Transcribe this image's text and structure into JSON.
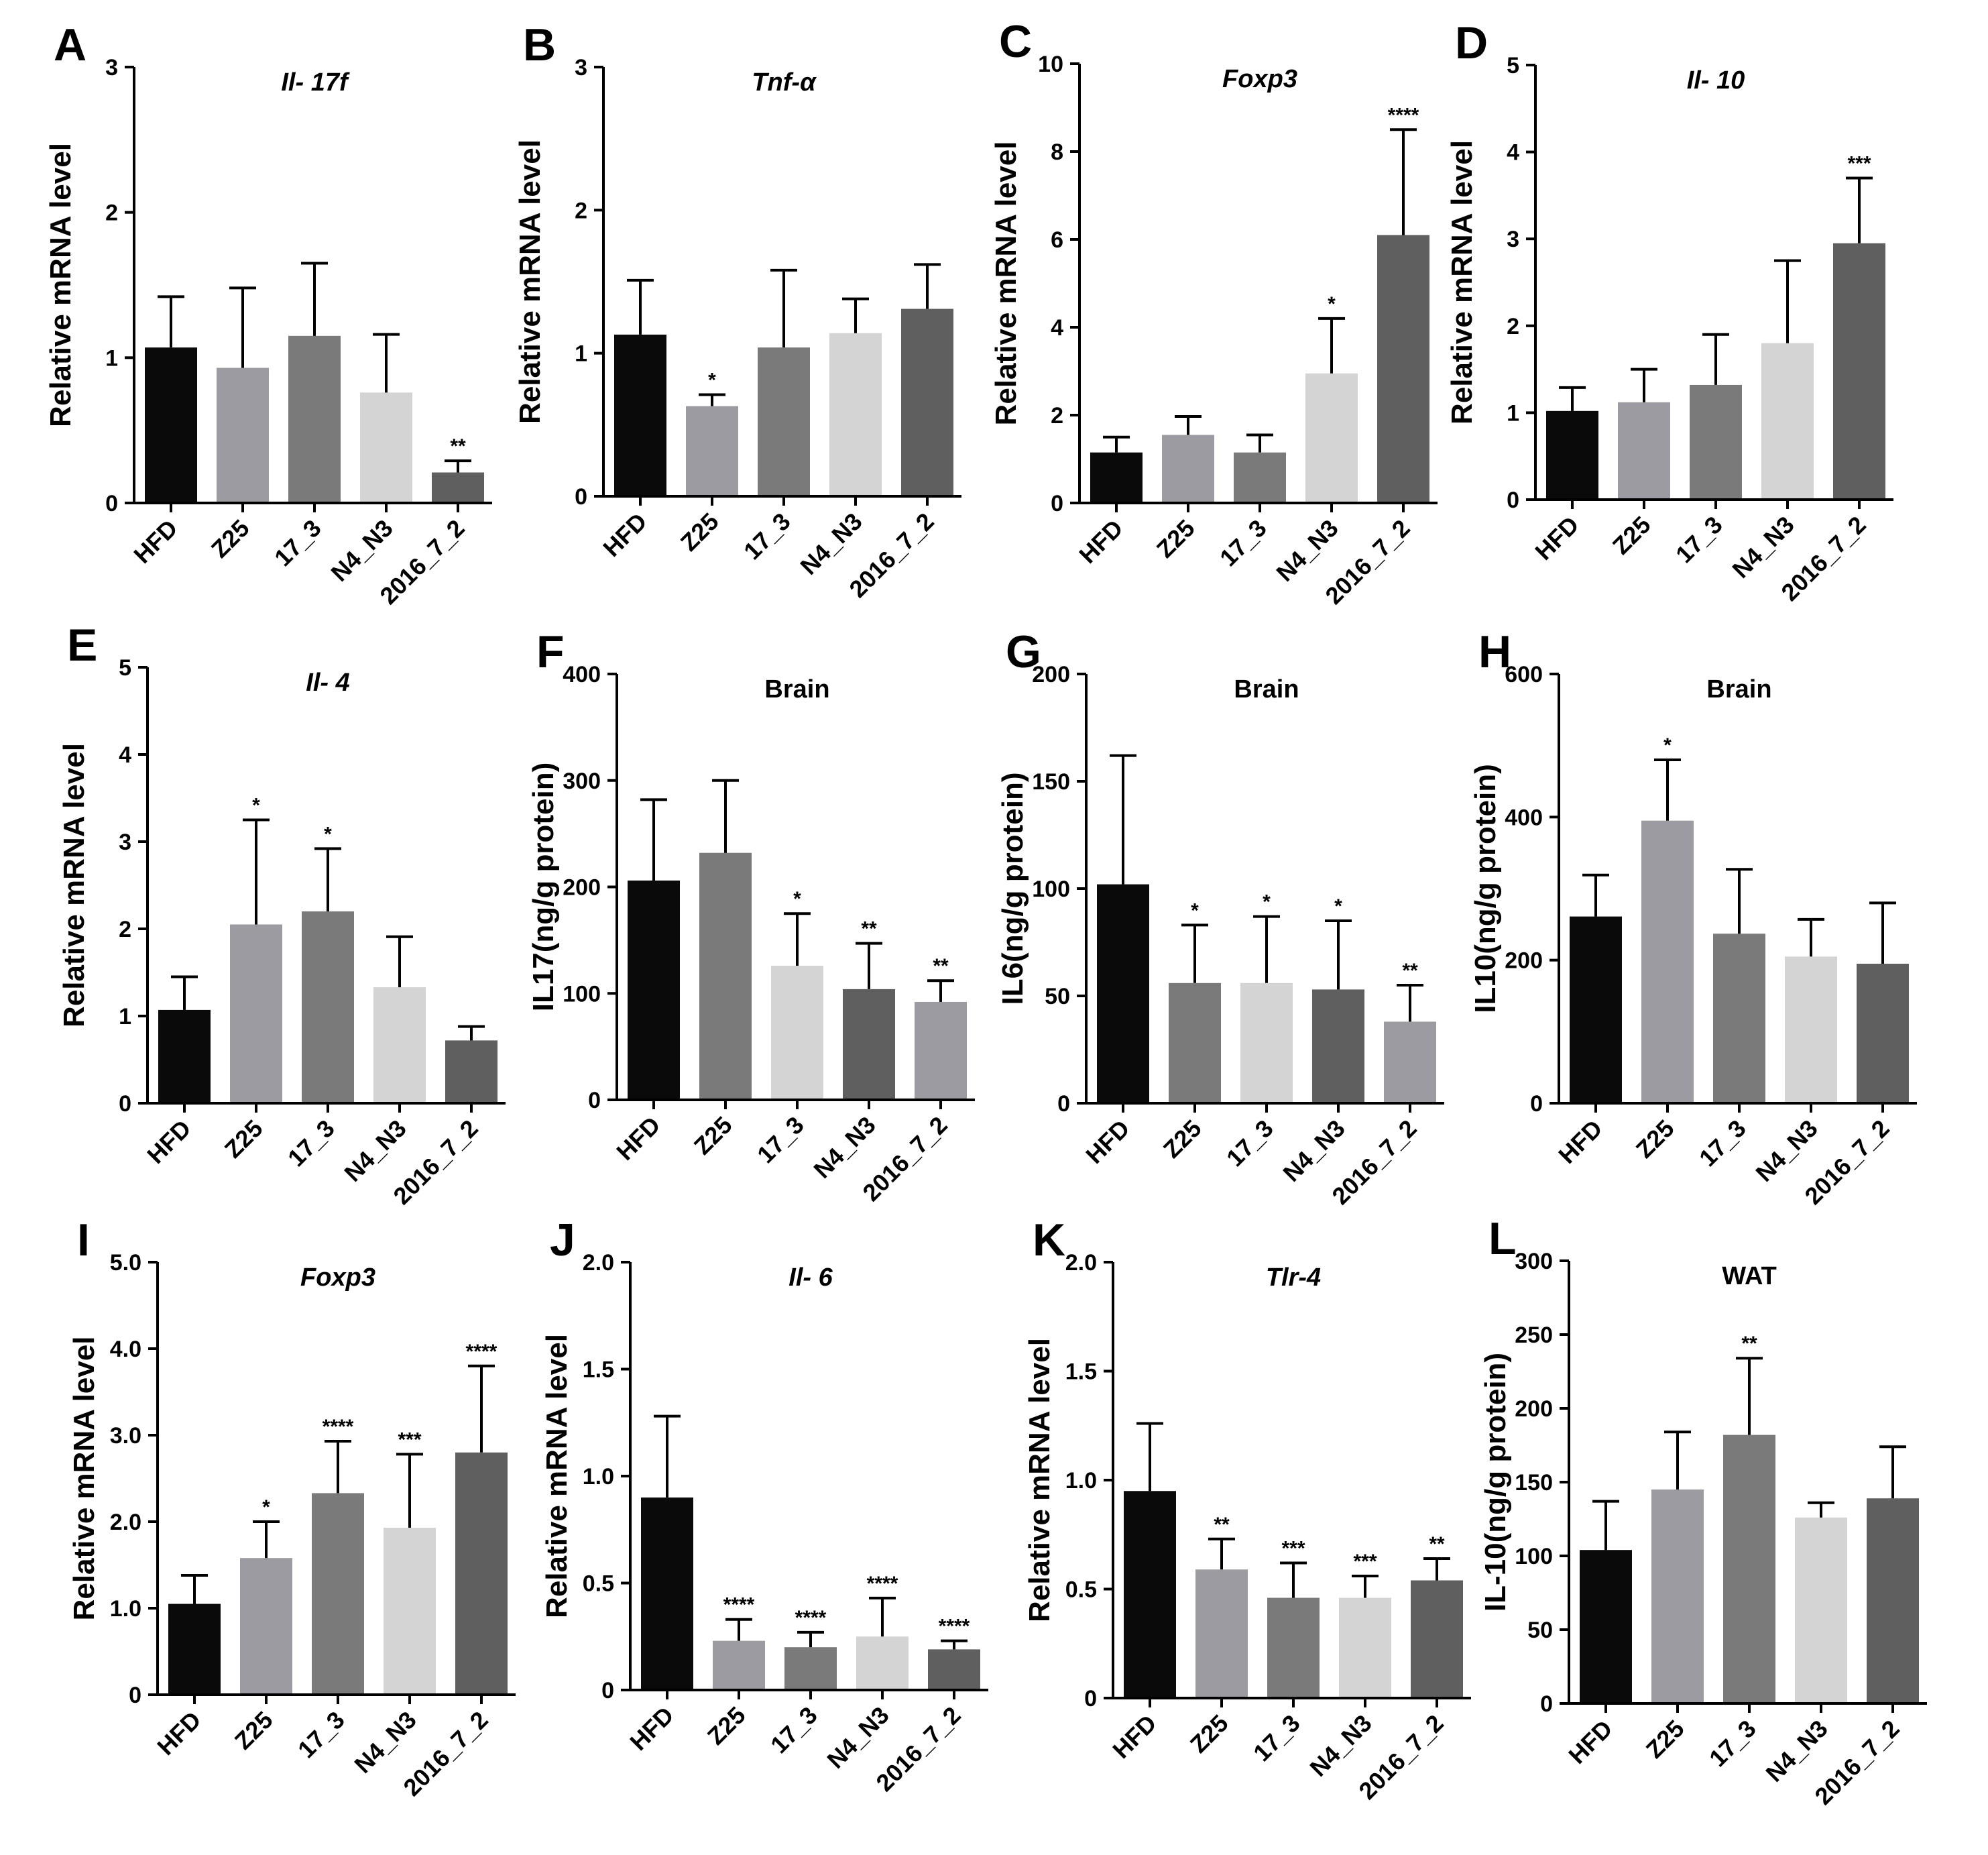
{
  "chart_data": [
    {
      "panel": "A",
      "type": "bar",
      "title": "Il- 17f",
      "title_italic": true,
      "ylabel": "Relative mRNA level",
      "ylim": [
        0,
        3
      ],
      "yticks": [
        "0",
        "1",
        "2",
        "3"
      ],
      "categories": [
        "HFD",
        "Z25",
        "17_3",
        "N4_N3",
        "2016_7_2"
      ],
      "values": [
        1.07,
        0.93,
        1.15,
        0.76,
        0.21
      ],
      "errors": [
        0.35,
        0.55,
        0.5,
        0.4,
        0.08
      ],
      "significance": [
        "",
        "",
        "",
        "",
        "**"
      ],
      "colors": [
        "#0a0a0a",
        "#9b9ba1",
        "#7a7a7a",
        "#d4d4d4",
        "#5f5f5f"
      ]
    },
    {
      "panel": "B",
      "type": "bar",
      "title": "Tnf-α",
      "title_italic": true,
      "ylabel": "Relative mRNA level",
      "ylim": [
        0,
        3
      ],
      "yticks": [
        "0",
        "1",
        "2",
        "3"
      ],
      "categories": [
        "HFD",
        "Z25",
        "17_3",
        "N4_N3",
        "2016_7_2"
      ],
      "values": [
        1.13,
        0.63,
        1.04,
        1.14,
        1.31
      ],
      "errors": [
        0.38,
        0.08,
        0.54,
        0.24,
        0.31
      ],
      "significance": [
        "",
        "*",
        "",
        "",
        ""
      ],
      "colors": [
        "#0a0a0a",
        "#9b9ba1",
        "#7a7a7a",
        "#d4d4d4",
        "#5f5f5f"
      ]
    },
    {
      "panel": "C",
      "type": "bar",
      "title": "Foxp3",
      "title_italic": true,
      "ylabel": "Relative mRNA level",
      "ylim": [
        0,
        10
      ],
      "yticks": [
        "0",
        "2",
        "4",
        "6",
        "8",
        "10"
      ],
      "categories": [
        "HFD",
        "Z25",
        "17_3",
        "N4_N3",
        "2016_7_2"
      ],
      "values": [
        1.15,
        1.55,
        1.15,
        2.95,
        6.1
      ],
      "errors": [
        0.35,
        0.42,
        0.4,
        1.25,
        2.4
      ],
      "significance": [
        "",
        "",
        "",
        "*",
        "****"
      ],
      "colors": [
        "#0a0a0a",
        "#9b9ba1",
        "#7a7a7a",
        "#d4d4d4",
        "#5f5f5f"
      ]
    },
    {
      "panel": "D",
      "type": "bar",
      "title": "Il- 10",
      "title_italic": true,
      "ylabel": "Relative mRNA level",
      "ylim": [
        0,
        5
      ],
      "yticks": [
        "0",
        "1",
        "2",
        "3",
        "4",
        "5"
      ],
      "categories": [
        "HFD",
        "Z25",
        "17_3",
        "N4_N3",
        "2016_7_2"
      ],
      "values": [
        1.02,
        1.12,
        1.32,
        1.8,
        2.95
      ],
      "errors": [
        0.27,
        0.38,
        0.58,
        0.95,
        0.75
      ],
      "significance": [
        "",
        "",
        "",
        "",
        "***"
      ],
      "colors": [
        "#0a0a0a",
        "#9b9ba1",
        "#7a7a7a",
        "#d4d4d4",
        "#5f5f5f"
      ]
    },
    {
      "panel": "E",
      "type": "bar",
      "title": "Il- 4",
      "title_italic": true,
      "ylabel": "Relative mRNA level",
      "ylim": [
        0,
        5
      ],
      "yticks": [
        "0",
        "1",
        "2",
        "3",
        "4",
        "5"
      ],
      "categories": [
        "HFD",
        "Z25",
        "17_3",
        "N4_N3",
        "2016_7_2"
      ],
      "values": [
        1.07,
        2.05,
        2.2,
        1.33,
        0.72
      ],
      "errors": [
        0.38,
        1.2,
        0.72,
        0.58,
        0.16
      ],
      "significance": [
        "",
        "*",
        "*",
        "",
        ""
      ],
      "colors": [
        "#0a0a0a",
        "#9b9ba1",
        "#7a7a7a",
        "#d4d4d4",
        "#5f5f5f"
      ]
    },
    {
      "panel": "F",
      "type": "bar",
      "title": "Brain",
      "title_italic": false,
      "ylabel": "IL17(ng/g protein)",
      "ylim": [
        0,
        400
      ],
      "yticks": [
        "0",
        "100",
        "200",
        "300",
        "400"
      ],
      "categories": [
        "HFD",
        "Z25",
        "17_3",
        "N4_N3",
        "2016_7_2"
      ],
      "values": [
        206,
        232,
        126,
        104,
        92
      ],
      "errors": [
        76,
        68,
        49,
        43,
        20
      ],
      "significance": [
        "",
        "",
        "*",
        "**",
        "**"
      ],
      "colors": [
        "#0a0a0a",
        "#7a7a7a",
        "#d4d4d4",
        "#5f5f5f",
        "#9b9ba1"
      ]
    },
    {
      "panel": "G",
      "type": "bar",
      "title": "Brain",
      "title_italic": false,
      "ylabel": "IL6(ng/g protein)",
      "ylim": [
        0,
        200
      ],
      "yticks": [
        "0",
        "50",
        "100",
        "150",
        "200"
      ],
      "categories": [
        "HFD",
        "Z25",
        "17_3",
        "N4_N3",
        "2016_7_2"
      ],
      "values": [
        102,
        56,
        56,
        53,
        38
      ],
      "errors": [
        60,
        27,
        31,
        32,
        17
      ],
      "significance": [
        "",
        "*",
        "*",
        "*",
        "**"
      ],
      "colors": [
        "#0a0a0a",
        "#7a7a7a",
        "#d4d4d4",
        "#5f5f5f",
        "#9b9ba1"
      ]
    },
    {
      "panel": "H",
      "type": "bar",
      "title": "Brain",
      "title_italic": false,
      "ylabel": "IL10(ng/g protein)",
      "ylim": [
        0,
        600
      ],
      "yticks": [
        "0",
        "200",
        "400",
        "600"
      ],
      "categories": [
        "HFD",
        "Z25",
        "17_3",
        "N4_N3",
        "2016_7_2"
      ],
      "values": [
        261,
        395,
        237,
        205,
        195
      ],
      "errors": [
        58,
        85,
        90,
        52,
        85
      ],
      "significance": [
        "",
        "*",
        "",
        "",
        ""
      ],
      "colors": [
        "#0a0a0a",
        "#9b9ba1",
        "#7a7a7a",
        "#d4d4d4",
        "#5f5f5f"
      ]
    },
    {
      "panel": "I",
      "type": "bar",
      "title": "Foxp3",
      "title_italic": true,
      "ylabel": "Relative mRNA level",
      "ylim": [
        0,
        5
      ],
      "yticks": [
        "0",
        "1.0",
        "2.0",
        "3.0",
        "4.0",
        "5.0"
      ],
      "categories": [
        "HFD",
        "Z25",
        "17_3",
        "N4_N3",
        "2016_7_2"
      ],
      "values": [
        1.05,
        1.58,
        2.33,
        1.93,
        2.8
      ],
      "errors": [
        0.33,
        0.42,
        0.6,
        0.85,
        1.0
      ],
      "significance": [
        "",
        "*",
        "****",
        "***",
        "****"
      ],
      "colors": [
        "#0a0a0a",
        "#9b9ba1",
        "#7a7a7a",
        "#d4d4d4",
        "#5f5f5f"
      ]
    },
    {
      "panel": "J",
      "type": "bar",
      "title": "Il- 6",
      "title_italic": true,
      "ylabel": "Relative mRNA level",
      "ylim": [
        0,
        2
      ],
      "yticks": [
        "0",
        "0.5",
        "1.0",
        "1.5",
        "2.0"
      ],
      "categories": [
        "HFD",
        "Z25",
        "17_3",
        "N4_N3",
        "2016_7_2"
      ],
      "values": [
        0.9,
        0.23,
        0.2,
        0.25,
        0.19
      ],
      "errors": [
        0.38,
        0.1,
        0.07,
        0.18,
        0.04
      ],
      "significance": [
        "",
        "****",
        "****",
        "****",
        "****"
      ],
      "colors": [
        "#0a0a0a",
        "#9b9ba1",
        "#7a7a7a",
        "#d4d4d4",
        "#5f5f5f"
      ]
    },
    {
      "panel": "K",
      "type": "bar",
      "title": "Tlr-4",
      "title_italic": true,
      "ylabel": "Relative mRNA level",
      "ylim": [
        0,
        2
      ],
      "yticks": [
        "0",
        "0.5",
        "1.0",
        "1.5",
        "2.0"
      ],
      "categories": [
        "HFD",
        "Z25",
        "17_3",
        "N4_N3",
        "2016_7_2"
      ],
      "values": [
        0.95,
        0.59,
        0.46,
        0.46,
        0.54
      ],
      "errors": [
        0.31,
        0.14,
        0.16,
        0.1,
        0.1
      ],
      "significance": [
        "",
        "**",
        "***",
        "***",
        "**"
      ],
      "colors": [
        "#0a0a0a",
        "#9b9ba1",
        "#7a7a7a",
        "#d4d4d4",
        "#5f5f5f"
      ]
    },
    {
      "panel": "L",
      "type": "bar",
      "title": "WAT",
      "title_italic": false,
      "ylabel": "IL-10(ng/g protein)",
      "ylim": [
        0,
        300
      ],
      "yticks": [
        "0",
        "50",
        "100",
        "150",
        "200",
        "250",
        "300"
      ],
      "categories": [
        "HFD",
        "Z25",
        "17_3",
        "N4_N3",
        "2016_7_2"
      ],
      "values": [
        104,
        145,
        182,
        126,
        139
      ],
      "errors": [
        33,
        39,
        52,
        10,
        35
      ],
      "significance": [
        "",
        "",
        "**",
        "",
        ""
      ],
      "colors": [
        "#0a0a0a",
        "#9b9ba1",
        "#7a7a7a",
        "#d4d4d4",
        "#5f5f5f"
      ]
    }
  ]
}
